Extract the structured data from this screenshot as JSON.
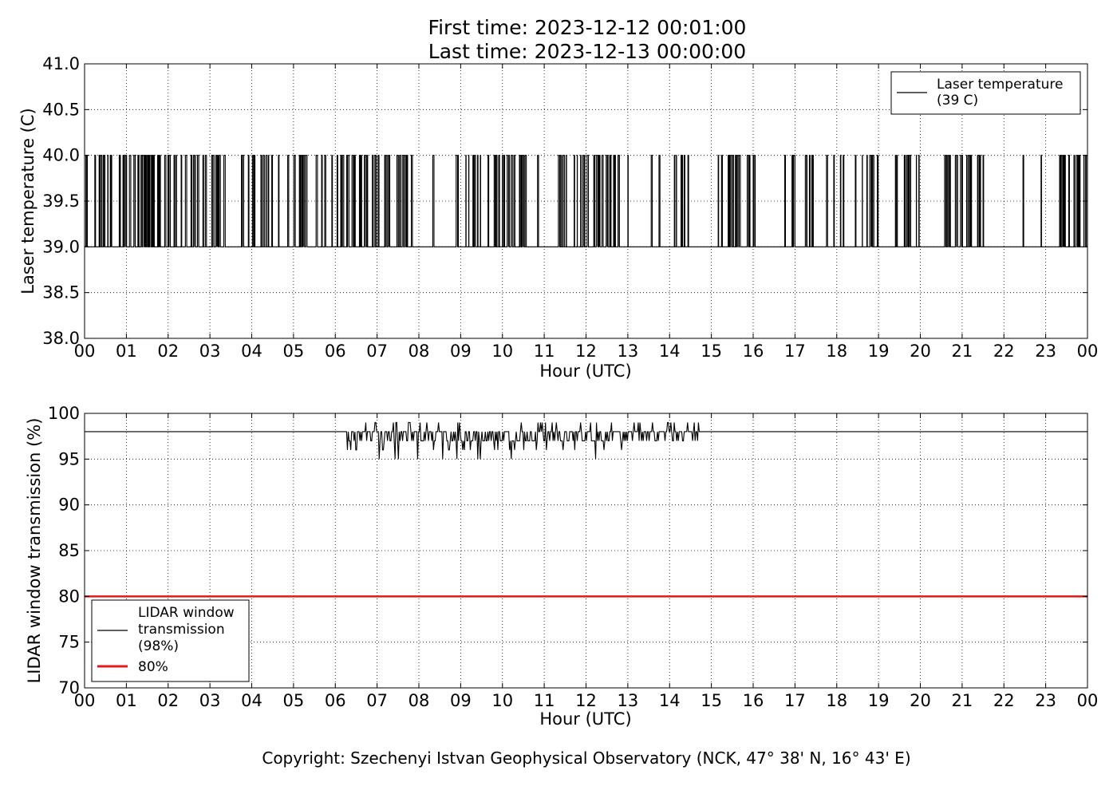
{
  "figure": {
    "title_line1": "First time: 2023-12-12 00:01:00",
    "title_line2": "Last time: 2023-12-13 00:00:00",
    "copyright": "Copyright: Szechenyi Istvan Geophysical Observatory (NCK, 47° 38' N, 16° 43' E)"
  },
  "chart_data": [
    {
      "type": "line",
      "xlabel": "Hour (UTC)",
      "ylabel": "Laser temperature (C)",
      "xlim": [
        0,
        24
      ],
      "ylim": [
        38.0,
        41.0
      ],
      "x_ticks": [
        "00",
        "01",
        "02",
        "03",
        "04",
        "05",
        "06",
        "07",
        "08",
        "09",
        "10",
        "11",
        "12",
        "13",
        "14",
        "15",
        "16",
        "17",
        "18",
        "19",
        "20",
        "21",
        "22",
        "23",
        "00"
      ],
      "y_ticks": [
        "38.0",
        "38.5",
        "39.0",
        "39.5",
        "40.0",
        "40.5",
        "41.0"
      ],
      "grid": true,
      "legend_position": "top-right",
      "legend": [
        "Laser temperature",
        "(39 C)"
      ],
      "series": [
        {
          "color": "#000000",
          "baseline": 39.0,
          "spike_value": 40.0,
          "spike_bursts": [
            {
              "from": 0.0,
              "to": 2.2,
              "density": 22
            },
            {
              "from": 2.3,
              "to": 3.6,
              "density": 14
            },
            {
              "from": 3.6,
              "to": 4.9,
              "density": 11
            },
            {
              "from": 4.9,
              "to": 6.0,
              "density": 12
            },
            {
              "from": 6.0,
              "to": 7.0,
              "density": 20
            },
            {
              "from": 7.0,
              "to": 7.9,
              "density": 14
            },
            {
              "from": 8.3,
              "to": 8.4,
              "density": 3
            },
            {
              "from": 8.8,
              "to": 10.9,
              "density": 14
            },
            {
              "from": 11.3,
              "to": 12.8,
              "density": 22
            },
            {
              "from": 13.0,
              "to": 13.1,
              "density": 3
            },
            {
              "from": 13.5,
              "to": 13.8,
              "density": 8
            },
            {
              "from": 14.1,
              "to": 14.9,
              "density": 8
            },
            {
              "from": 15.1,
              "to": 16.1,
              "density": 18
            },
            {
              "from": 16.6,
              "to": 17.0,
              "density": 10
            },
            {
              "from": 17.1,
              "to": 18.2,
              "density": 10
            },
            {
              "from": 18.3,
              "to": 19.0,
              "density": 14
            },
            {
              "from": 19.4,
              "to": 20.0,
              "density": 20
            },
            {
              "from": 20.5,
              "to": 21.6,
              "density": 16
            },
            {
              "from": 22.4,
              "to": 22.5,
              "density": 3
            },
            {
              "from": 22.8,
              "to": 22.9,
              "density": 3
            },
            {
              "from": 23.2,
              "to": 24.0,
              "density": 20
            }
          ]
        }
      ]
    },
    {
      "type": "line",
      "xlabel": "Hour (UTC)",
      "ylabel": "LIDAR window transmission (%)",
      "xlim": [
        0,
        24
      ],
      "ylim": [
        70,
        100
      ],
      "x_ticks": [
        "00",
        "01",
        "02",
        "03",
        "04",
        "05",
        "06",
        "07",
        "08",
        "09",
        "10",
        "11",
        "12",
        "13",
        "14",
        "15",
        "16",
        "17",
        "18",
        "19",
        "20",
        "21",
        "22",
        "23",
        "00"
      ],
      "y_ticks": [
        "70",
        "75",
        "80",
        "85",
        "90",
        "95",
        "100"
      ],
      "grid": true,
      "legend_position": "lower-left",
      "legend": [
        {
          "lines": [
            "LIDAR window",
            "transmission",
            "(98%)"
          ],
          "color": "#000000"
        },
        {
          "lines": [
            "80%"
          ],
          "color": "#e31a1c"
        }
      ],
      "series": [
        {
          "color": "#000000",
          "baseline": 98,
          "noisy_from": 6.25,
          "noisy_to": 14.75,
          "noise_min": 95,
          "noise_max": 99
        },
        {
          "color": "#e31a1c",
          "constant": 80
        }
      ]
    }
  ]
}
